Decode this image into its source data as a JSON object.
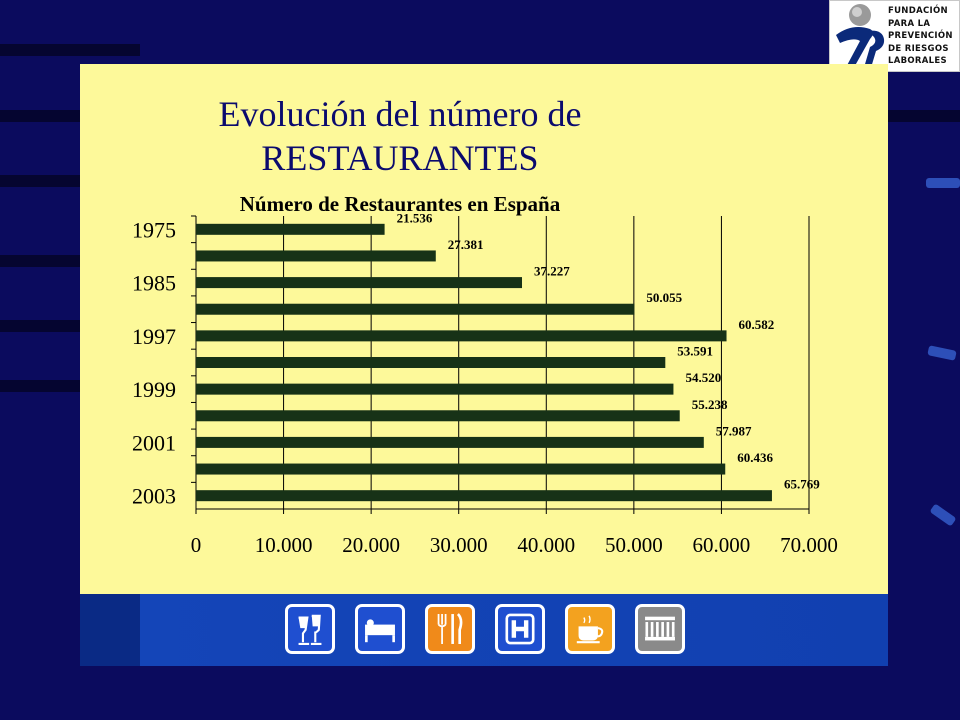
{
  "chart_data": {
    "type": "bar",
    "orientation": "horizontal",
    "title": "Evolución del número de RESTAURANTES",
    "title_lines": [
      "Evolución del número de",
      "RESTAURANTES"
    ],
    "subtitle": "Número de Restaurantes en España",
    "y_tick_labels": [
      "1975",
      "1985",
      "1997",
      "1999",
      "2001",
      "2003"
    ],
    "bars": [
      {
        "value": 21536,
        "label": "21.536"
      },
      {
        "value": 27381,
        "label": "27.381"
      },
      {
        "value": 37227,
        "label": "37.227"
      },
      {
        "value": 50055,
        "label": "50.055"
      },
      {
        "value": 60582,
        "label": "60.582"
      },
      {
        "value": 53591,
        "label": "53.591"
      },
      {
        "value": 54520,
        "label": "54.520"
      },
      {
        "value": 55238,
        "label": "55.238"
      },
      {
        "value": 57987,
        "label": "57.987"
      },
      {
        "value": 60436,
        "label": "60.436"
      },
      {
        "value": 65769,
        "label": "65.769"
      }
    ],
    "x_ticks": [
      0,
      10000,
      20000,
      30000,
      40000,
      50000,
      60000,
      70000
    ],
    "x_tick_labels": [
      "0",
      "10.000",
      "20.000",
      "30.000",
      "40.000",
      "50.000",
      "60.000",
      "70.000"
    ],
    "xlim": [
      0,
      70000
    ],
    "grid": true,
    "bar_color": "#173217",
    "legend": false
  },
  "logo": {
    "lines": [
      "FUNDACIÓN",
      "PARA LA",
      "PREVENCIÓN",
      "DE RIESGOS",
      "LABORALES"
    ],
    "accent": "#0b2a7a"
  },
  "footer_icons": [
    {
      "name": "drinks-icon",
      "color": "#1f4fd0"
    },
    {
      "name": "bed-icon",
      "color": "#1f4fd0"
    },
    {
      "name": "cutlery-icon",
      "color": "#f08a1a"
    },
    {
      "name": "hotel-icon",
      "color": "#1f4fd0"
    },
    {
      "name": "coffee-cup-icon",
      "color": "#f3a21f"
    },
    {
      "name": "monument-icon",
      "color": "#8a8a8a"
    }
  ],
  "colors": {
    "background": "#0b0b5e",
    "panel": "#fdf99a",
    "title": "#0b0b6e",
    "band": "#1140b0"
  }
}
